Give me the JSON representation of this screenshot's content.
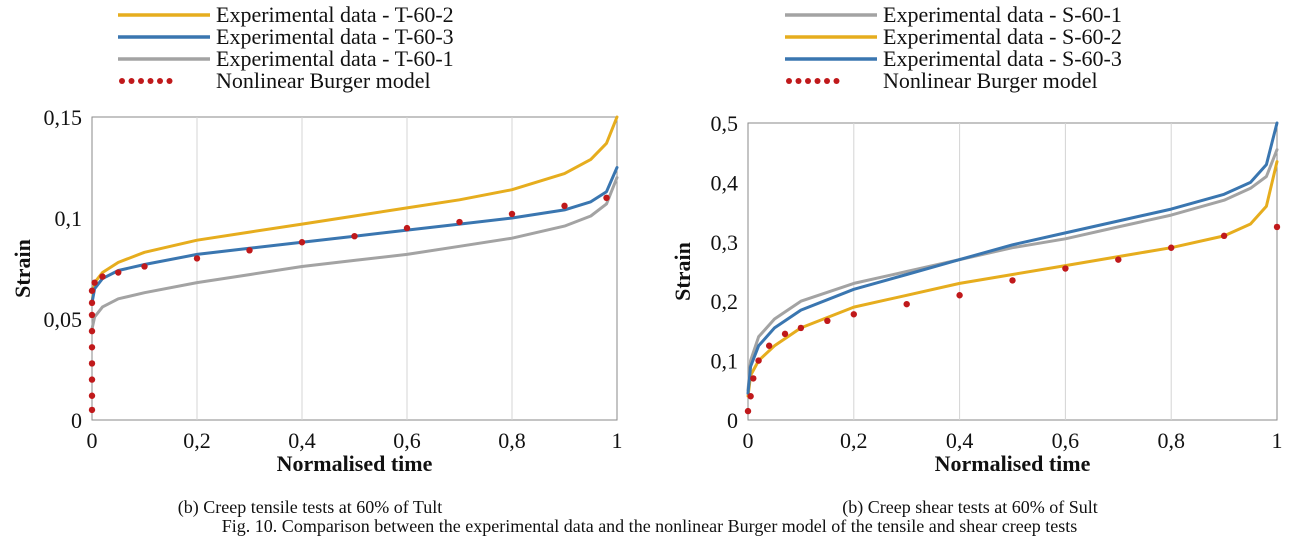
{
  "charts": [
    {
      "id": "left",
      "caption": "(b) Creep tensile tests at 60% of Tult",
      "chart_data": {
        "type": "line",
        "title": "",
        "xlabel": "Normalised time",
        "ylabel": "Strain",
        "xlim": [
          0,
          1
        ],
        "ylim": [
          0,
          0.15
        ],
        "xticks": [
          "0",
          "0,2",
          "0,4",
          "0,6",
          "0,8",
          "1"
        ],
        "yticks": [
          "0",
          "0,05",
          "0,1",
          "0,15"
        ],
        "grid": "vertical",
        "legend_position": "top",
        "series": [
          {
            "name": "Experimental data - T-60-2",
            "color": "#e6ad1e",
            "style": "solid",
            "x": [
              0,
              0.005,
              0.02,
              0.05,
              0.1,
              0.2,
              0.3,
              0.4,
              0.5,
              0.6,
              0.7,
              0.8,
              0.9,
              0.95,
              0.98,
              1.0
            ],
            "y": [
              0.058,
              0.068,
              0.073,
              0.078,
              0.083,
              0.089,
              0.093,
              0.097,
              0.101,
              0.105,
              0.109,
              0.114,
              0.122,
              0.129,
              0.137,
              0.15
            ]
          },
          {
            "name": "Experimental data - T-60-3",
            "color": "#3a76b0",
            "style": "solid",
            "x": [
              0,
              0.005,
              0.02,
              0.05,
              0.1,
              0.2,
              0.3,
              0.4,
              0.5,
              0.6,
              0.7,
              0.8,
              0.9,
              0.95,
              0.98,
              1.0
            ],
            "y": [
              0.058,
              0.065,
              0.07,
              0.074,
              0.077,
              0.082,
              0.085,
              0.088,
              0.091,
              0.094,
              0.097,
              0.1,
              0.104,
              0.108,
              0.113,
              0.125
            ]
          },
          {
            "name": "Experimental data - T-60-1",
            "color": "#a3a3a3",
            "style": "solid",
            "x": [
              0,
              0.005,
              0.02,
              0.05,
              0.1,
              0.2,
              0.3,
              0.4,
              0.5,
              0.6,
              0.7,
              0.8,
              0.9,
              0.95,
              0.98,
              1.0
            ],
            "y": [
              0.045,
              0.051,
              0.056,
              0.06,
              0.063,
              0.068,
              0.072,
              0.076,
              0.079,
              0.082,
              0.086,
              0.09,
              0.096,
              0.101,
              0.107,
              0.12
            ]
          },
          {
            "name": "Nonlinear Burger model",
            "color": "#c0191b",
            "style": "dotted",
            "x": [
              0,
              0,
              0,
              0,
              0,
              0,
              0,
              0,
              0,
              0.005,
              0.02,
              0.05,
              0.1,
              0.2,
              0.3,
              0.4,
              0.5,
              0.6,
              0.7,
              0.8,
              0.9,
              0.98
            ],
            "y": [
              0.005,
              0.012,
              0.02,
              0.028,
              0.036,
              0.044,
              0.052,
              0.058,
              0.064,
              0.068,
              0.071,
              0.073,
              0.076,
              0.08,
              0.084,
              0.088,
              0.091,
              0.095,
              0.098,
              0.102,
              0.106,
              0.11
            ]
          }
        ]
      }
    },
    {
      "id": "right",
      "caption": "(b) Creep shear tests at 60% of Sult",
      "chart_data": {
        "type": "line",
        "title": "",
        "xlabel": "Normalised time",
        "ylabel": "Strain",
        "xlim": [
          0,
          1
        ],
        "ylim": [
          0,
          0.5
        ],
        "xticks": [
          "0",
          "0,2",
          "0,4",
          "0,6",
          "0,8",
          "1"
        ],
        "yticks": [
          "0",
          "0,1",
          "0,2",
          "0,3",
          "0,4",
          "0,5"
        ],
        "grid": "vertical",
        "legend_position": "top",
        "series": [
          {
            "name": "Experimental data - S-60-1",
            "color": "#a3a3a3",
            "style": "solid",
            "x": [
              0,
              0.005,
              0.02,
              0.05,
              0.1,
              0.2,
              0.3,
              0.4,
              0.5,
              0.6,
              0.7,
              0.8,
              0.9,
              0.95,
              0.98,
              1.0
            ],
            "y": [
              0.05,
              0.1,
              0.14,
              0.17,
              0.2,
              0.23,
              0.25,
              0.27,
              0.29,
              0.305,
              0.325,
              0.345,
              0.37,
              0.39,
              0.41,
              0.455
            ]
          },
          {
            "name": "Experimental data - S-60-2",
            "color": "#e6ad1e",
            "style": "solid",
            "x": [
              0,
              0.005,
              0.02,
              0.05,
              0.1,
              0.2,
              0.3,
              0.4,
              0.5,
              0.6,
              0.7,
              0.8,
              0.9,
              0.95,
              0.98,
              1.0
            ],
            "y": [
              0.04,
              0.075,
              0.1,
              0.125,
              0.155,
              0.19,
              0.21,
              0.23,
              0.245,
              0.26,
              0.275,
              0.29,
              0.31,
              0.33,
              0.36,
              0.435
            ]
          },
          {
            "name": "Experimental data - S-60-3",
            "color": "#3a76b0",
            "style": "solid",
            "x": [
              0,
              0.005,
              0.02,
              0.05,
              0.1,
              0.2,
              0.3,
              0.4,
              0.5,
              0.6,
              0.7,
              0.8,
              0.9,
              0.95,
              0.98,
              1.0
            ],
            "y": [
              0.045,
              0.09,
              0.125,
              0.155,
              0.185,
              0.22,
              0.245,
              0.27,
              0.295,
              0.315,
              0.335,
              0.355,
              0.38,
              0.4,
              0.43,
              0.5
            ]
          },
          {
            "name": "Nonlinear Burger model",
            "color": "#c0191b",
            "style": "dotted",
            "x": [
              0,
              0.005,
              0.01,
              0.02,
              0.04,
              0.07,
              0.1,
              0.15,
              0.2,
              0.3,
              0.4,
              0.5,
              0.6,
              0.7,
              0.8,
              0.9,
              1.0
            ],
            "y": [
              0.015,
              0.04,
              0.07,
              0.1,
              0.125,
              0.145,
              0.155,
              0.167,
              0.178,
              0.195,
              0.21,
              0.235,
              0.255,
              0.27,
              0.29,
              0.31,
              0.325
            ]
          }
        ]
      }
    }
  ],
  "figure_caption": "Fig. 10. Comparison between the experimental data and the nonlinear Burger model of the tensile and shear creep tests"
}
